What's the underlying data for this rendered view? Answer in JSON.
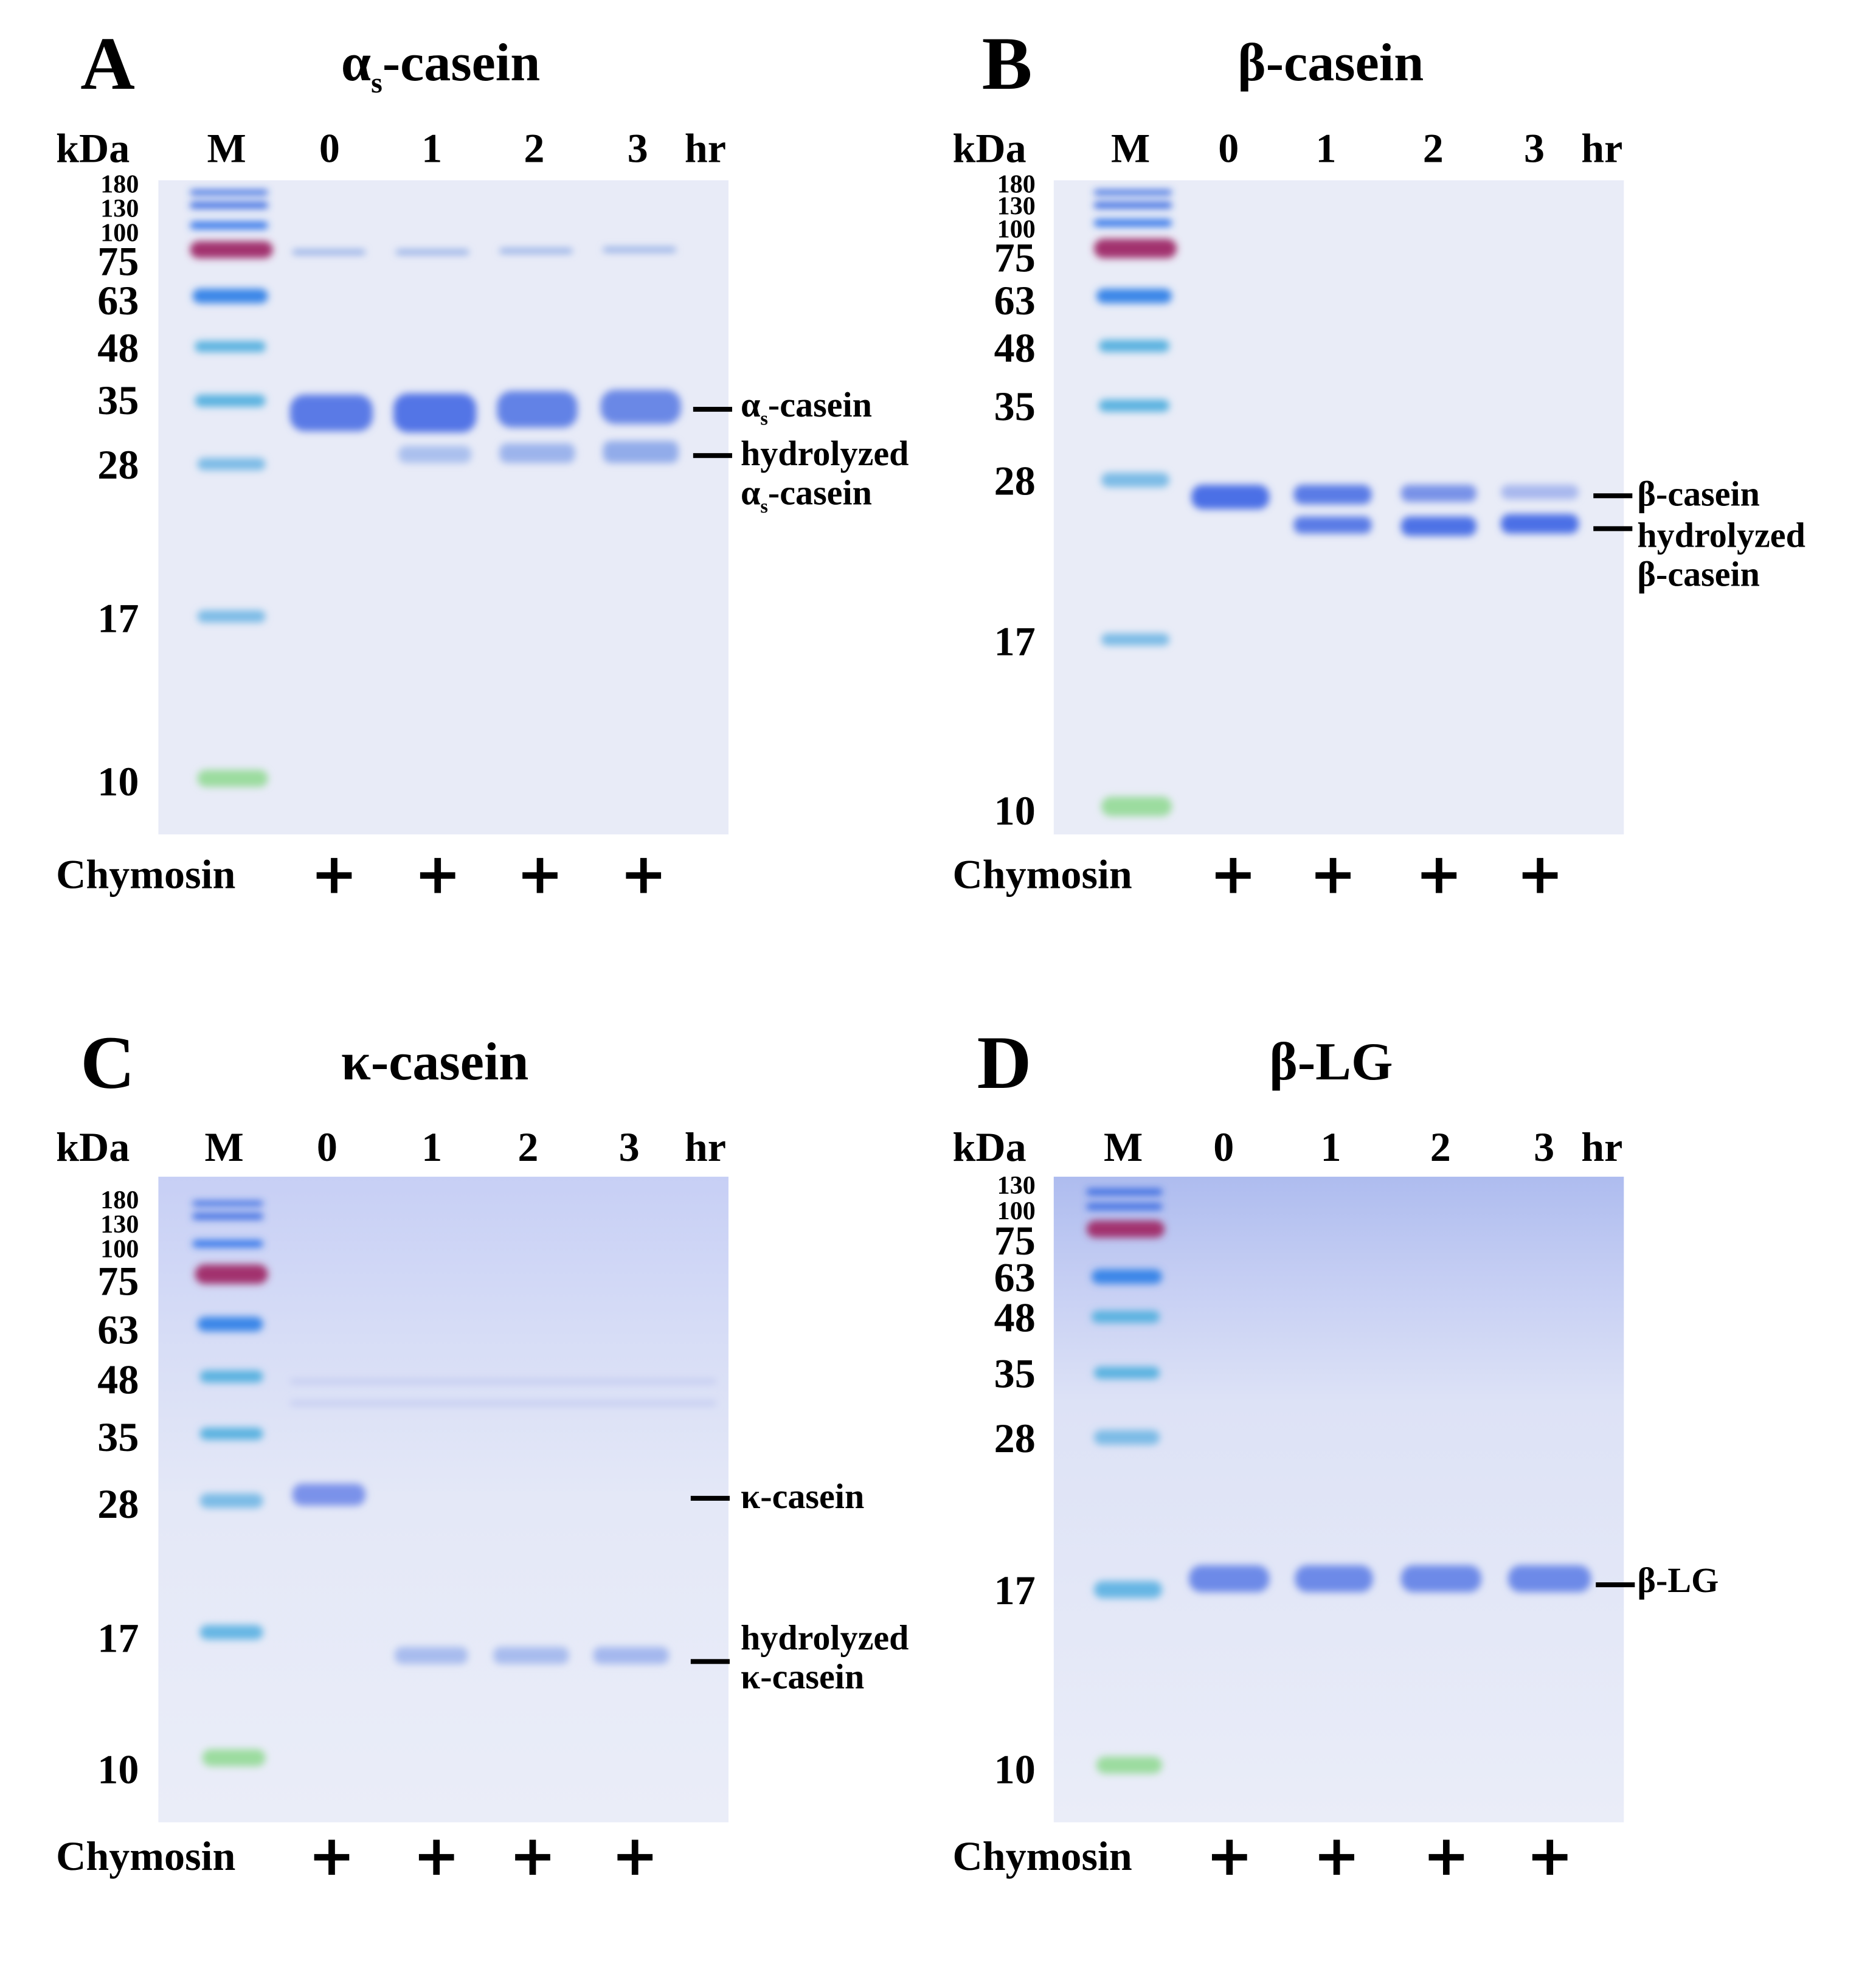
{
  "figure": {
    "panels": [
      {
        "id": "A",
        "letter": "A",
        "title_main": "α",
        "title_sub": "s",
        "title_rest": "-casein",
        "axis_unit": "kDa",
        "lanes": [
          "M",
          "0",
          "1",
          "2",
          "3"
        ],
        "time_unit": "hr",
        "markers_big": [
          "75",
          "63",
          "48",
          "35",
          "28",
          "17",
          "10"
        ],
        "markers_small": [
          "180",
          "130",
          "100"
        ],
        "treatment_label": "Chymosin",
        "treatment_marks": [
          "+",
          "+",
          "+",
          "+"
        ],
        "band_labels": [
          {
            "main": "α",
            "sub": "s",
            "rest": "-casein"
          },
          {
            "line1": "hydrolyzed",
            "main": "α",
            "sub": "s",
            "rest": "-casein"
          }
        ]
      },
      {
        "id": "B",
        "letter": "B",
        "title": "β-casein",
        "axis_unit": "kDa",
        "lanes": [
          "M",
          "0",
          "1",
          "2",
          "3"
        ],
        "time_unit": "hr",
        "markers_big": [
          "75",
          "63",
          "48",
          "35",
          "28",
          "17",
          "10"
        ],
        "markers_small": [
          "180",
          "130",
          "100"
        ],
        "treatment_label": "Chymosin",
        "treatment_marks": [
          "+",
          "+",
          "+",
          "+"
        ],
        "band_labels": [
          {
            "text": "β-casein"
          },
          {
            "line1": "hydrolyzed",
            "line2": "β-casein"
          }
        ]
      },
      {
        "id": "C",
        "letter": "C",
        "title": "κ-casein",
        "axis_unit": "kDa",
        "lanes": [
          "M",
          "0",
          "1",
          "2",
          "3"
        ],
        "time_unit": "hr",
        "markers_big": [
          "75",
          "63",
          "48",
          "35",
          "28",
          "17",
          "10"
        ],
        "markers_small": [
          "180",
          "130",
          "100"
        ],
        "treatment_label": "Chymosin",
        "treatment_marks": [
          "+",
          "+",
          "+",
          "+"
        ],
        "band_labels": [
          {
            "text": "κ-casein"
          },
          {
            "line1": "hydrolyzed",
            "line2": "κ-casein"
          }
        ]
      },
      {
        "id": "D",
        "letter": "D",
        "title": "β-LG",
        "axis_unit": "kDa",
        "lanes": [
          "M",
          "0",
          "1",
          "2",
          "3"
        ],
        "time_unit": "hr",
        "markers_big": [
          "75",
          "63",
          "48",
          "35",
          "28",
          "17",
          "10"
        ],
        "markers_small": [
          "130",
          "100"
        ],
        "treatment_label": "Chymosin",
        "treatment_marks": [
          "+",
          "+",
          "+",
          "+"
        ],
        "band_labels": [
          {
            "text": "β-LG"
          }
        ]
      }
    ],
    "colors": {
      "gel_background": "#e8ebf7",
      "band_blue": "#4f6fe0",
      "ladder_blue": "#3a86e8",
      "ladder_purple": "#a2336e",
      "ladder_green": "#7ad28a",
      "ladder_cyan": "#5ab2e0"
    }
  }
}
